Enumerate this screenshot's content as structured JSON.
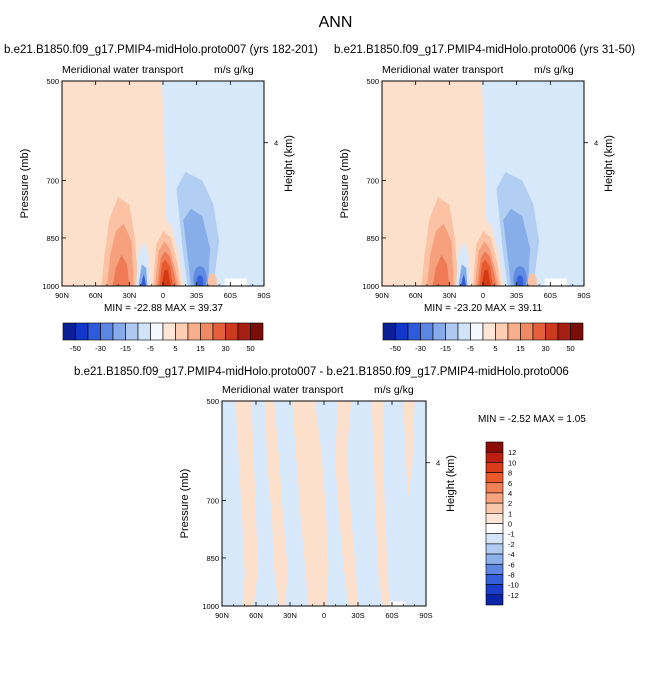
{
  "title": "ANN",
  "colors": {
    "pos1": "#fde0cc",
    "pos2": "#fbc2a4",
    "pos3": "#f6a07e",
    "pos4": "#ef7b56",
    "pos5": "#e85a2c",
    "pos6": "#d43a12",
    "neg1": "#d7e8fb",
    "neg2": "#b2cff3",
    "neg3": "#88aee9",
    "neg4": "#5f8ae0",
    "neg5": "#3260d8",
    "neg6": "#0c2bc4"
  },
  "chart_data": [
    {
      "type": "contour",
      "case_title": "b.e21.B1850.f09_g17.PMIP4-midHolo.proto007 (yrs 182-201)",
      "left_label": "Meridional water transport",
      "right_label": "m/s g/kg",
      "ylabel": "Pressure (mb)",
      "right_axis_label": "Height (km)",
      "x_ticks": [
        "90N",
        "60N",
        "30N",
        "0",
        "30S",
        "60S",
        "90S"
      ],
      "y_ticks": [
        "500",
        "700",
        "850",
        "1000"
      ],
      "right_ticks": [
        "4"
      ],
      "ylim": [
        500,
        1000
      ],
      "min_max": "MIN = -22.88   MAX =  39.37",
      "colorbar": {
        "orientation": "horizontal",
        "labels": [
          "-50",
          "-30",
          "-15",
          "-5",
          "5",
          "15",
          "30",
          "50"
        ],
        "colors": [
          "#0a1f96",
          "#1037c9",
          "#2d5bdb",
          "#5b86e2",
          "#86aaea",
          "#adc8f1",
          "#d0e3f9",
          "#f5f9ff",
          "#fde6d6",
          "#fccdb3",
          "#f8ad8b",
          "#f08a63",
          "#e4603d",
          "#cc3a1f",
          "#a61f12",
          "#7a0c09"
        ]
      },
      "regions": {
        "boundary_lat": -1,
        "shallow_pos_lat": [
          50,
          25
        ],
        "strong_pos_lat": [
          -5,
          18
        ],
        "neg_lat": [
          4,
          20
        ],
        "south_neg_lat": [
          -22,
          -55
        ]
      }
    },
    {
      "type": "contour",
      "case_title": "b.e21.B1850.f09_g17.PMIP4-midHolo.proto006 (yrs 31-50)",
      "left_label": "Meridional water transport",
      "right_label": "m/s g/kg",
      "ylabel": "Pressure (mb)",
      "right_axis_label": "Height (km)",
      "x_ticks": [
        "90N",
        "60N",
        "30N",
        "0",
        "30S",
        "60S",
        "90S"
      ],
      "y_ticks": [
        "500",
        "700",
        "850",
        "1000"
      ],
      "right_ticks": [
        "4"
      ],
      "ylim": [
        500,
        1000
      ],
      "min_max": "MIN = -23.20   MAX =  39.11",
      "colorbar": {
        "orientation": "horizontal",
        "labels": [
          "-50",
          "-30",
          "-15",
          "-5",
          "5",
          "15",
          "30",
          "50"
        ],
        "colors": [
          "#0a1f96",
          "#1037c9",
          "#2d5bdb",
          "#5b86e2",
          "#86aaea",
          "#adc8f1",
          "#d0e3f9",
          "#f5f9ff",
          "#fde6d6",
          "#fccdb3",
          "#f8ad8b",
          "#f08a63",
          "#e4603d",
          "#cc3a1f",
          "#a61f12",
          "#7a0c09"
        ]
      }
    },
    {
      "type": "contour",
      "case_title": "b.e21.B1850.f09_g17.PMIP4-midHolo.proto007 - b.e21.B1850.f09_g17.PMIP4-midHolo.proto006",
      "left_label": "Meridional water transport",
      "right_label": "m/s g/kg",
      "ylabel": "Pressure (mb)",
      "right_axis_label": "Height (km)",
      "x_ticks": [
        "90N",
        "60N",
        "30N",
        "0",
        "30S",
        "60S",
        "90S"
      ],
      "y_ticks": [
        "500",
        "700",
        "850",
        "1000"
      ],
      "right_ticks": [
        "4"
      ],
      "ylim": [
        500,
        1000
      ],
      "min_max": "MIN = -2.52   MAX =   1.05",
      "colorbar": {
        "orientation": "vertical",
        "labels": [
          "12",
          "10",
          "8",
          "6",
          "4",
          "2",
          "1",
          "0",
          "-1",
          "-2",
          "-4",
          "-6",
          "-8",
          "-10",
          "-12"
        ],
        "colors": [
          "#8c0d08",
          "#bb1f10",
          "#da3b18",
          "#ec5a2b",
          "#f47f56",
          "#f8a57f",
          "#fbc7ab",
          "#fde4d4",
          "#ffffff",
          "#d5e6fb",
          "#b0ccf3",
          "#8cb0ec",
          "#5d86e2",
          "#345fd9",
          "#1c3dcc",
          "#0b24a8"
        ]
      }
    }
  ]
}
